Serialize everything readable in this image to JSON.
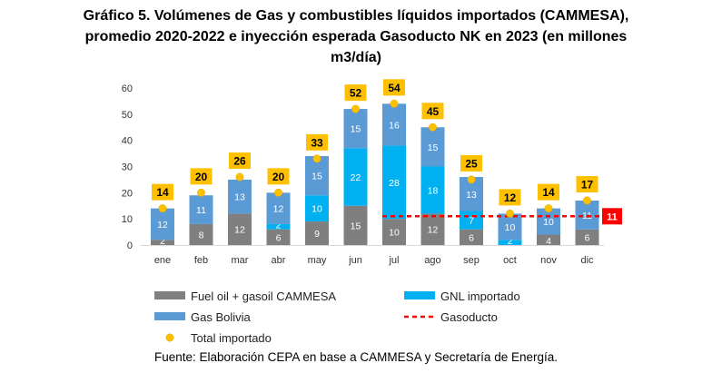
{
  "title_lines": [
    "Gráfico 5. Volúmenes de Gas y combustibles líquidos importados (CAMMESA),",
    "promedio 2020-2022 e inyección esperada Gasoducto NK en 2023 (en millones",
    "m3/día)"
  ],
  "source": "Fuente: Elaboración CEPA en base a CAMMESA y Secretaría de Energía.",
  "chart_data": {
    "type": "bar",
    "stacked": true,
    "categories": [
      "ene",
      "feb",
      "mar",
      "abr",
      "may",
      "jun",
      "jul",
      "ago",
      "sep",
      "oct",
      "nov",
      "dic"
    ],
    "ylim": [
      0,
      60
    ],
    "yticks": [
      0,
      10,
      20,
      30,
      40,
      50,
      60
    ],
    "grid": false,
    "series": [
      {
        "name": "Fuel oil + gasoil CAMMESA",
        "color": "#7f7f7f",
        "labelColor": "#ffffff",
        "values": [
          2,
          8,
          12,
          6,
          9,
          15,
          10,
          12,
          6,
          0,
          4,
          6
        ]
      },
      {
        "name": "GNL importado",
        "color": "#00b0f0",
        "labelColor": "#ffffff",
        "values": [
          0,
          0,
          0,
          2,
          10,
          22,
          28,
          18,
          7,
          2,
          0,
          0
        ]
      },
      {
        "name": "Gas Bolivia",
        "color": "#5b9bd5",
        "labelColor": "#ffffff",
        "values": [
          12,
          11,
          13,
          12,
          15,
          15,
          16,
          15,
          13,
          10,
          10,
          11
        ]
      }
    ],
    "totals": {
      "name": "Total importado",
      "color": "#ffc000",
      "labelBg": "#ffc000",
      "values": [
        14,
        20,
        26,
        20,
        33,
        52,
        54,
        45,
        25,
        12,
        14,
        17
      ]
    },
    "gasoducto": {
      "name": "Gasoducto",
      "color": "#ff0000",
      "value": 11,
      "from_category": "jul",
      "to_category": "dic",
      "label": "11"
    },
    "legend_placement": "bottom"
  }
}
